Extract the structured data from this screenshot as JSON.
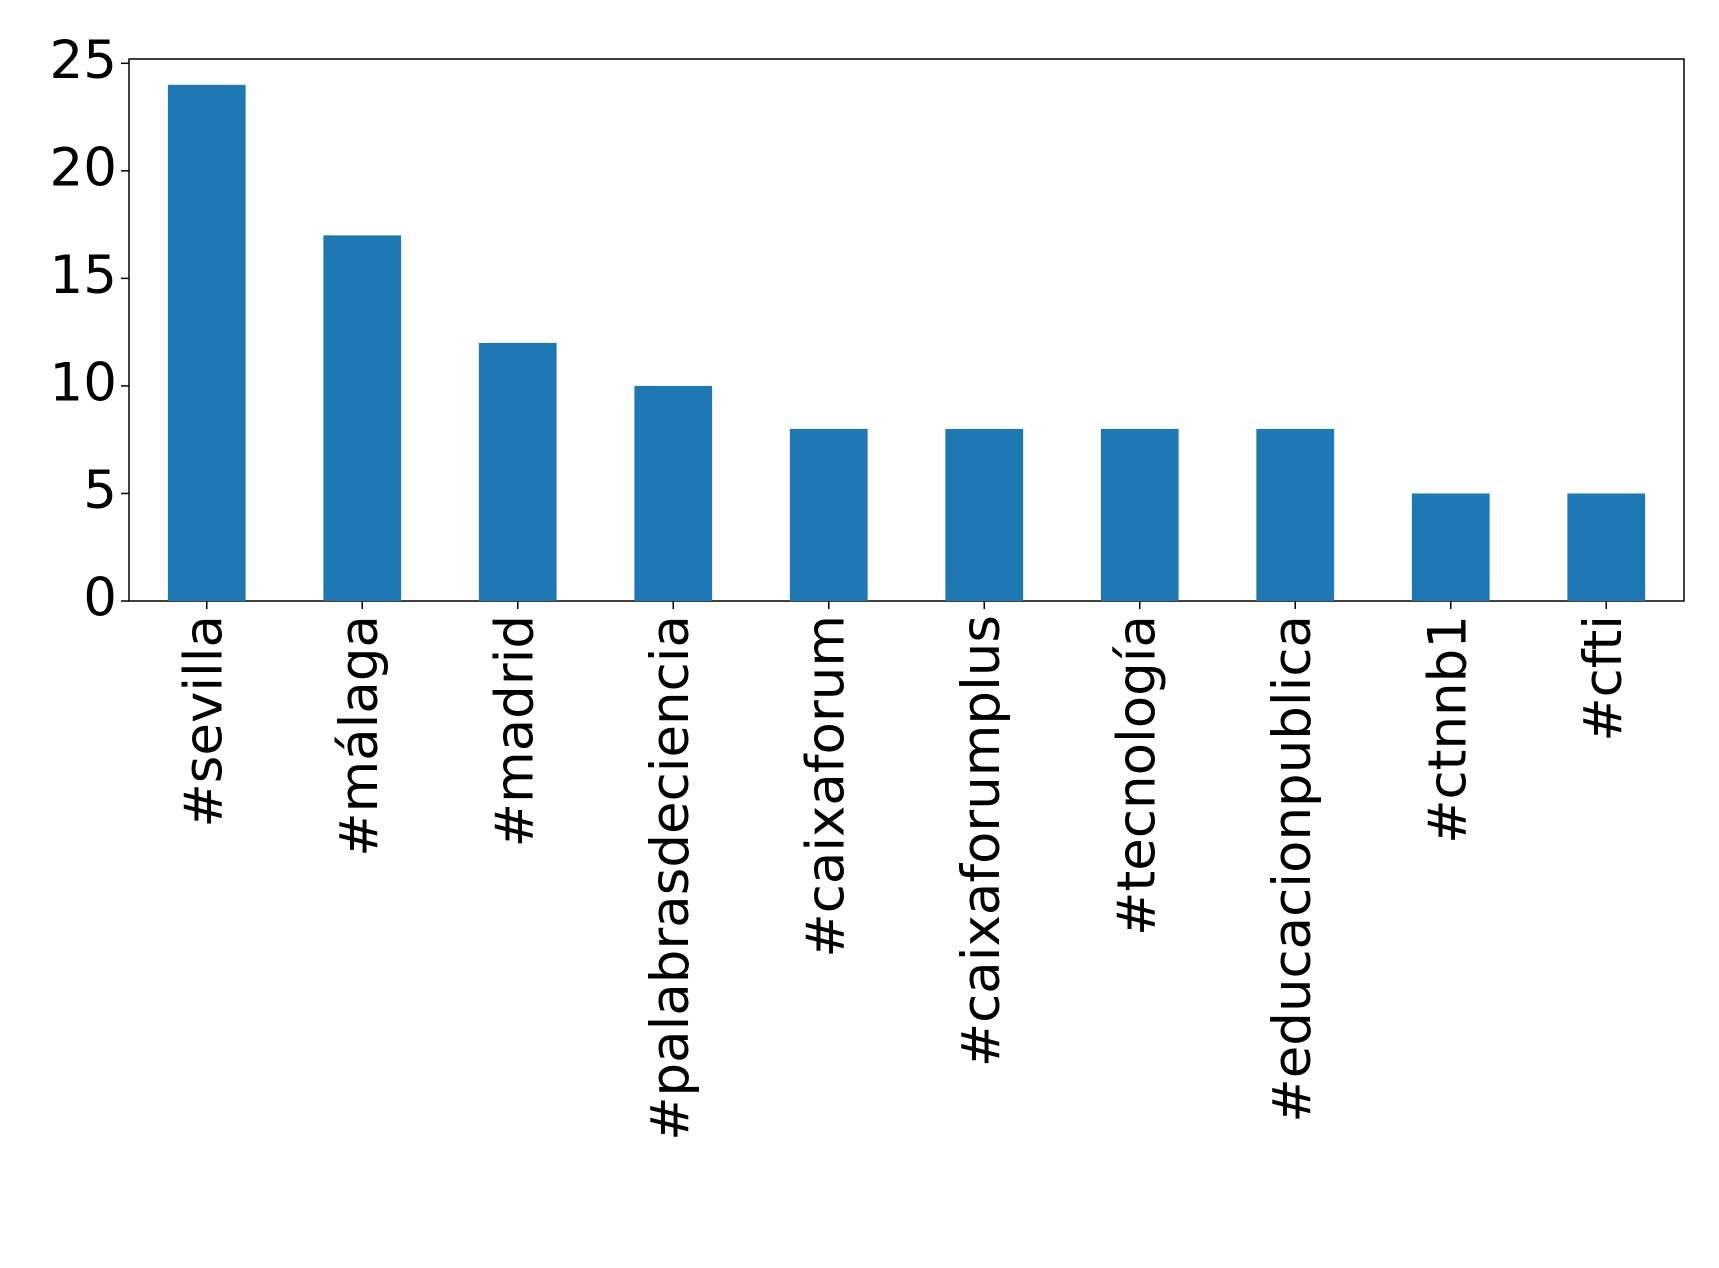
{
  "chart_data": {
    "type": "bar",
    "categories": [
      "#sevilla",
      "#málaga",
      "#madrid",
      "#palabrasdeciencia",
      "#caixaforum",
      "#caixaforumplus",
      "#tecnología",
      "#educacionpublica",
      "#ctnnb1",
      "#cfti"
    ],
    "values": [
      24,
      17,
      12,
      10,
      8,
      8,
      8,
      8,
      5,
      5
    ],
    "color": "#1f77b4",
    "ylim": [
      0,
      25.2
    ],
    "yticks": [
      0,
      5,
      10,
      15,
      20,
      25
    ],
    "grid": false
  }
}
